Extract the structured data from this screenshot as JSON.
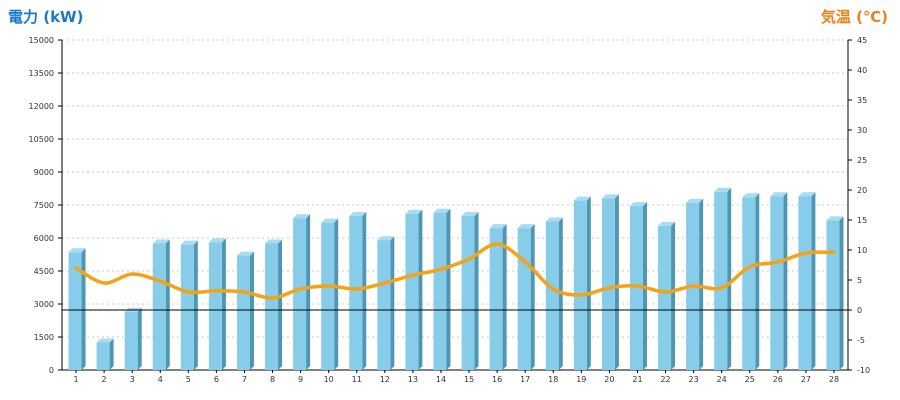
{
  "chart_data": {
    "type": "bar",
    "left_axis_label": "電力 (kW)",
    "right_axis_label": "気温 (℃)",
    "categories": [
      "1",
      "2",
      "3",
      "4",
      "5",
      "6",
      "7",
      "8",
      "9",
      "10",
      "11",
      "12",
      "13",
      "14",
      "15",
      "16",
      "17",
      "18",
      "19",
      "20",
      "21",
      "22",
      "23",
      "24",
      "25",
      "26",
      "27",
      "28"
    ],
    "y_left": {
      "min": 0,
      "max": 15000,
      "ticks": [
        0,
        1500,
        3000,
        4500,
        6000,
        7500,
        9000,
        10500,
        12000,
        13500,
        15000
      ]
    },
    "y_right": {
      "min": -10,
      "max": 45,
      "ticks": [
        -10,
        -5,
        0,
        5,
        10,
        15,
        20,
        25,
        30,
        35,
        40,
        45
      ]
    },
    "series": [
      {
        "type": "bar",
        "axis": "left",
        "values": [
          5350,
          1250,
          2650,
          5750,
          5700,
          5800,
          5200,
          5750,
          6900,
          6700,
          7000,
          5900,
          7100,
          7150,
          7000,
          6450,
          6450,
          6750,
          7700,
          7800,
          7450,
          6550,
          7600,
          8100,
          7850,
          7900,
          7900,
          6800
        ]
      },
      {
        "type": "line",
        "axis": "right",
        "values": [
          7,
          4.5,
          6,
          4.8,
          3,
          3.2,
          3,
          2,
          3.5,
          4,
          3.5,
          4.5,
          5.8,
          6.8,
          8.5,
          11,
          8,
          3.5,
          2.5,
          3.7,
          4,
          3,
          4,
          3.7,
          7.2,
          8,
          9.5,
          9.6
        ]
      }
    ],
    "grid": true,
    "reference_line_right": 0,
    "colors": {
      "bar_front": "#87cdea",
      "bar_side": "#4d97b4",
      "bar_top": "#a9dcf1",
      "line": "#f5a214",
      "left_title": "#1b78c2",
      "right_title": "#ef7f1a",
      "grid": "#c8c8c8",
      "reference": "#000000"
    }
  }
}
